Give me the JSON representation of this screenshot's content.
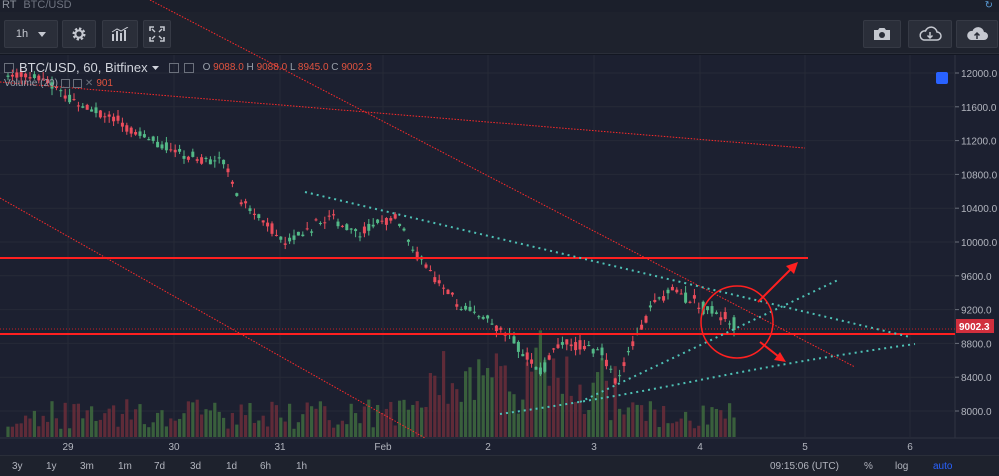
{
  "titlebar": {
    "prefix": "RT",
    "symbol": "BTC/USD"
  },
  "toolbar": {
    "interval": "1h"
  },
  "legend": {
    "symbol": "BTC/USD, 60, Bitfinex",
    "o_label": "O",
    "o_value": "9088.0",
    "h_label": "H",
    "h_value": "9088.0",
    "l_label": "L",
    "l_value": "8945.0",
    "c_label": "C",
    "c_value": "9002.3"
  },
  "volume_legend": {
    "label": "Volume (20)",
    "value": "901"
  },
  "price_axis": {
    "ticks": [
      "12000.0",
      "11600.0",
      "11200.0",
      "10800.0",
      "10400.0",
      "10000.0",
      "9600.0",
      "9200.0",
      "8800.0",
      "8400.0",
      "8000.0"
    ],
    "current_price": "9002.3"
  },
  "time_axis": {
    "ticks": [
      "29",
      "30",
      "31",
      "Feb",
      "2",
      "3",
      "4",
      "5",
      "6"
    ]
  },
  "bottombar": {
    "ranges": [
      "3y",
      "1y",
      "3m",
      "1m",
      "7d",
      "3d",
      "1d",
      "6h",
      "1h"
    ],
    "time": "09:15:06 (UTC)",
    "percent": "%",
    "log": "log",
    "auto": "auto"
  },
  "colors": {
    "up": "#53b987",
    "down": "#eb4d5c",
    "lines": "#ff1f1f",
    "teal": "#4ec2b6"
  },
  "icons": {
    "settings": "gear-icon",
    "indicators": "indicators-icon",
    "fullscreen": "fullscreen-icon",
    "snapshot": "camera-icon",
    "load": "cloud-download-icon",
    "save": "cloud-upload-icon"
  }
}
